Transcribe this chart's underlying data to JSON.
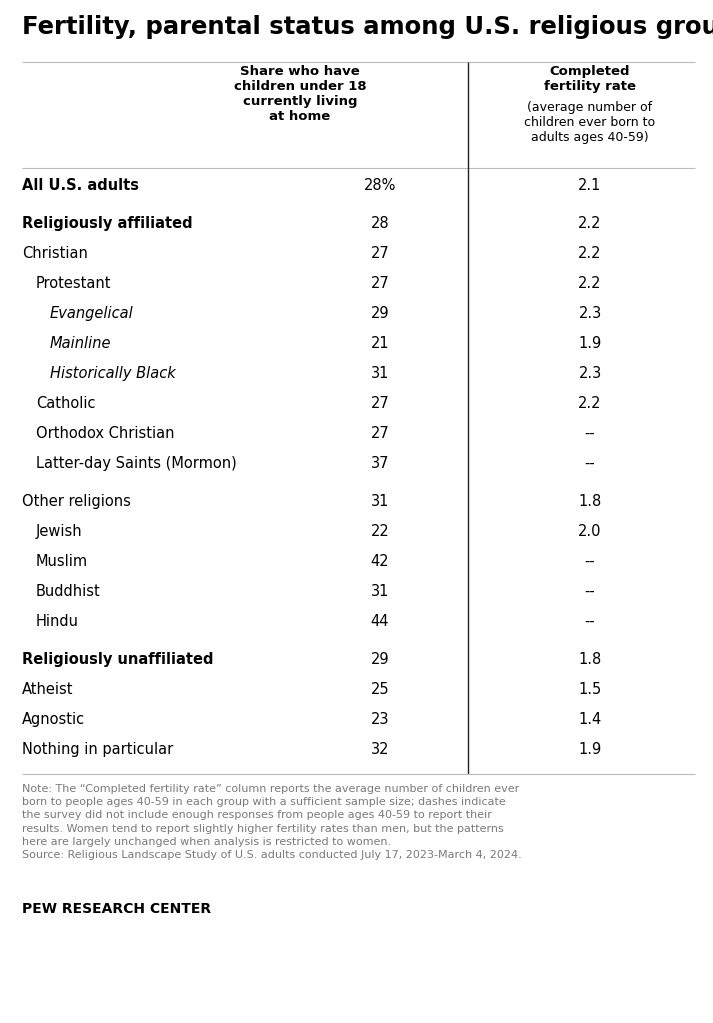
{
  "title": "Fertility, parental status among U.S. religious groups",
  "rows": [
    {
      "label": "All U.S. adults",
      "col1": "28%",
      "col2": "2.1",
      "bold": true,
      "italic": false,
      "indent": 0,
      "spacer_before": false
    },
    {
      "label": "Religiously affiliated",
      "col1": "28",
      "col2": "2.2",
      "bold": true,
      "italic": false,
      "indent": 0,
      "spacer_before": true
    },
    {
      "label": "Christian",
      "col1": "27",
      "col2": "2.2",
      "bold": false,
      "italic": false,
      "indent": 0,
      "spacer_before": false
    },
    {
      "label": "Protestant",
      "col1": "27",
      "col2": "2.2",
      "bold": false,
      "italic": false,
      "indent": 1,
      "spacer_before": false
    },
    {
      "label": "Evangelical",
      "col1": "29",
      "col2": "2.3",
      "bold": false,
      "italic": true,
      "indent": 2,
      "spacer_before": false
    },
    {
      "label": "Mainline",
      "col1": "21",
      "col2": "1.9",
      "bold": false,
      "italic": true,
      "indent": 2,
      "spacer_before": false
    },
    {
      "label": "Historically Black",
      "col1": "31",
      "col2": "2.3",
      "bold": false,
      "italic": true,
      "indent": 2,
      "spacer_before": false
    },
    {
      "label": "Catholic",
      "col1": "27",
      "col2": "2.2",
      "bold": false,
      "italic": false,
      "indent": 1,
      "spacer_before": false
    },
    {
      "label": "Orthodox Christian",
      "col1": "27",
      "col2": "--",
      "bold": false,
      "italic": false,
      "indent": 1,
      "spacer_before": false
    },
    {
      "label": "Latter-day Saints (Mormon)",
      "col1": "37",
      "col2": "--",
      "bold": false,
      "italic": false,
      "indent": 1,
      "spacer_before": false
    },
    {
      "label": "Other religions",
      "col1": "31",
      "col2": "1.8",
      "bold": false,
      "italic": false,
      "indent": 0,
      "spacer_before": true
    },
    {
      "label": "Jewish",
      "col1": "22",
      "col2": "2.0",
      "bold": false,
      "italic": false,
      "indent": 1,
      "spacer_before": false
    },
    {
      "label": "Muslim",
      "col1": "42",
      "col2": "--",
      "bold": false,
      "italic": false,
      "indent": 1,
      "spacer_before": false
    },
    {
      "label": "Buddhist",
      "col1": "31",
      "col2": "--",
      "bold": false,
      "italic": false,
      "indent": 1,
      "spacer_before": false
    },
    {
      "label": "Hindu",
      "col1": "44",
      "col2": "--",
      "bold": false,
      "italic": false,
      "indent": 1,
      "spacer_before": false
    },
    {
      "label": "Religiously unaffiliated",
      "col1": "29",
      "col2": "1.8",
      "bold": true,
      "italic": false,
      "indent": 0,
      "spacer_before": true
    },
    {
      "label": "Atheist",
      "col1": "25",
      "col2": "1.5",
      "bold": false,
      "italic": false,
      "indent": 0,
      "spacer_before": false
    },
    {
      "label": "Agnostic",
      "col1": "23",
      "col2": "1.4",
      "bold": false,
      "italic": false,
      "indent": 0,
      "spacer_before": false
    },
    {
      "label": "Nothing in particular",
      "col1": "32",
      "col2": "1.9",
      "bold": false,
      "italic": false,
      "indent": 0,
      "spacer_before": false
    }
  ],
  "col1_header": "Share who have\nchildren under 18\ncurrently living\nat home",
  "col2_header_bold": "Completed\nfertility rate",
  "col2_header_normal": "(average number of\nchildren ever born to\nadults ages 40-59)",
  "note_text": "Note: The “Completed fertility rate” column reports the average number of children ever born to people ages 40-59 in each group with a sufficient sample size; dashes indicate the survey did not include enough responses from people ages 40-59 to report their results. Women tend to report slightly higher fertility rates than men, but the patterns here are largely unchanged when analysis is restricted to women.\nSource: Religious Landscape Study of U.S. adults conducted July 17, 2023-March 4, 2024.",
  "footer": "PEW RESEARCH CENTER",
  "bg_color": "#ffffff",
  "title_color": "#000000",
  "text_color": "#000000",
  "note_color": "#7a7a7a",
  "line_color": "#bbbbbb",
  "divider_color": "#222222",
  "title_fontsize": 17.5,
  "header_fontsize": 9.5,
  "row_fontsize": 10.5,
  "note_fontsize": 8.0,
  "footer_fontsize": 10.0,
  "indent_size": 14,
  "fig_width": 7.13,
  "fig_height": 10.23,
  "dpi": 100
}
